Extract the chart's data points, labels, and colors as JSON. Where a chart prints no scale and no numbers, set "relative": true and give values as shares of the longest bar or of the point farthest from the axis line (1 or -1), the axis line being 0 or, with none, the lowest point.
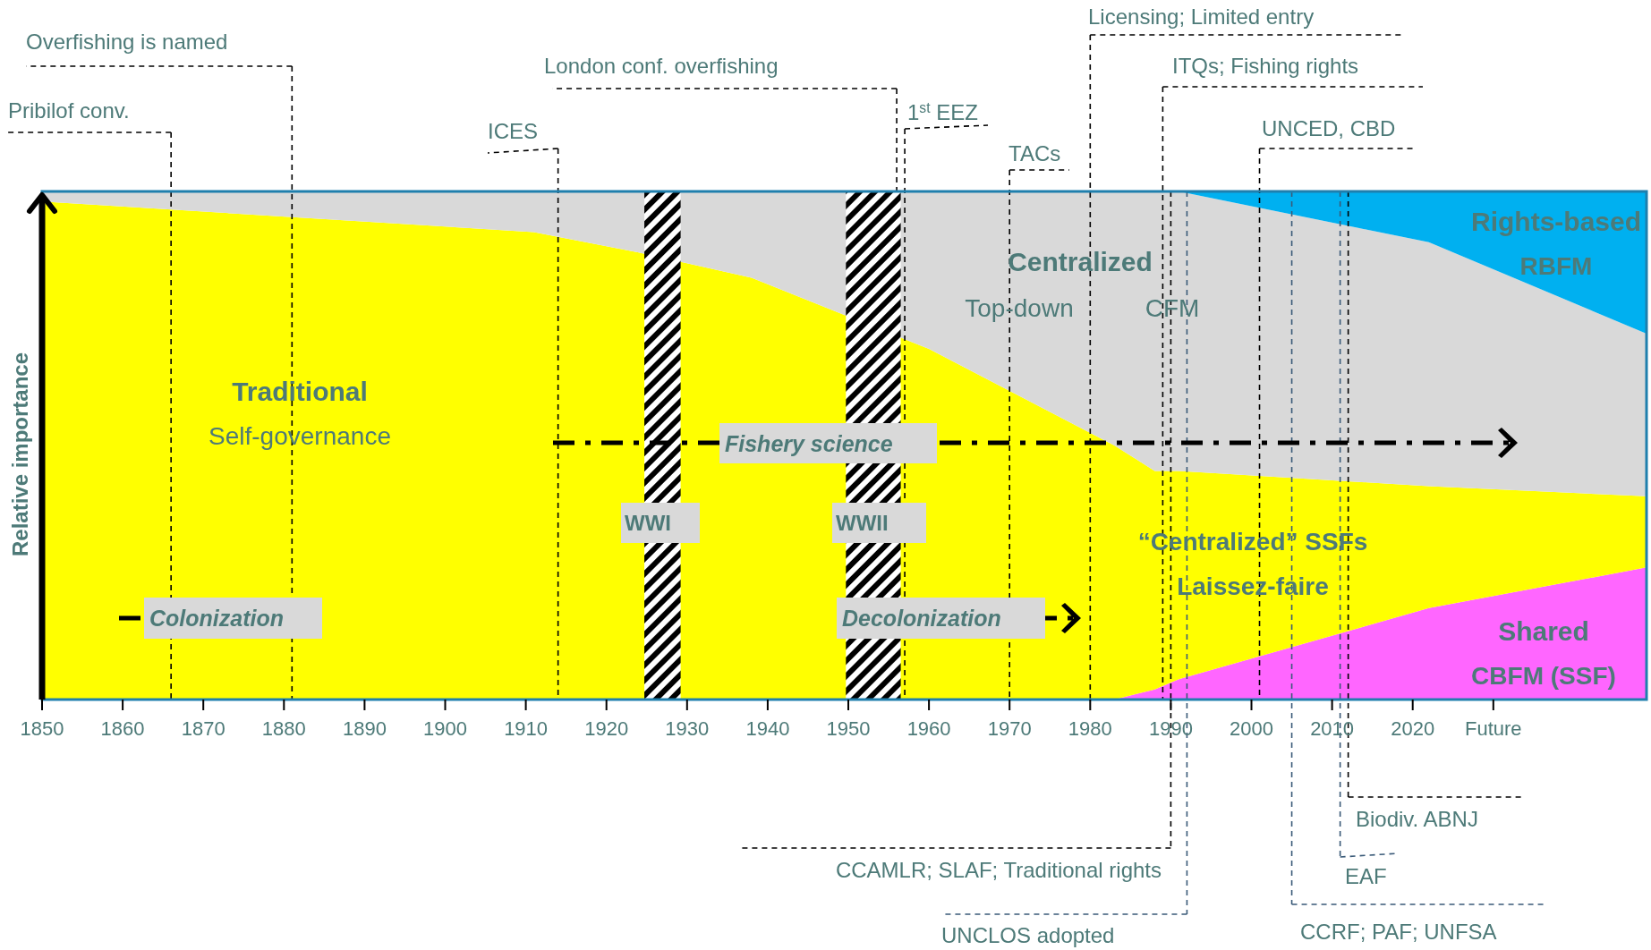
{
  "chart_data": {
    "type": "area",
    "stacked": true,
    "relative": true,
    "ylabel": "Relative importance",
    "x": [
      1850,
      1911,
      1924,
      1938,
      1949,
      1960,
      1983,
      1988,
      1991,
      2022,
      2049
    ],
    "xlim": [
      1850,
      2049
    ],
    "xticks": [
      1850,
      1860,
      1870,
      1880,
      1890,
      1900,
      1910,
      1920,
      1930,
      1940,
      1950,
      1960,
      1970,
      1980,
      1990,
      2000,
      2010,
      2020,
      {
        "value": 2030,
        "label": "Future"
      }
    ],
    "series": [
      {
        "name": "Shared",
        "color": "#ff66ff",
        "values": [
          0,
          0,
          0,
          0,
          0,
          0,
          0,
          0.02,
          0.04,
          0.18,
          0.26
        ]
      },
      {
        "name": "Traditional",
        "color": "#ffff00",
        "values": [
          0.98,
          0.92,
          0.88,
          0.83,
          0.76,
          0.69,
          0.5,
          0.43,
          0.41,
          0.24,
          0.14
        ]
      },
      {
        "name": "Centralized",
        "color": "#d9d9d9",
        "values": [
          0.02,
          0.08,
          0.12,
          0.17,
          0.24,
          0.31,
          0.5,
          0.55,
          0.55,
          0.48,
          0.32
        ]
      },
      {
        "name": "Rights-based",
        "color": "#00b0f0",
        "values": [
          0,
          0,
          0,
          0,
          0,
          0,
          0,
          0,
          0,
          0.1,
          0.28
        ]
      }
    ],
    "bands": [
      {
        "axis": "x",
        "from": 1924.7,
        "to": 1929.2,
        "label": "WWI",
        "color": "#000000"
      },
      {
        "axis": "x",
        "from": 1949.7,
        "to": 1956.5,
        "label": "WWII",
        "color": "#000000"
      }
    ],
    "ref_lines": [
      {
        "axis": "x",
        "value": 1866,
        "label": "Pribilof conv.",
        "color": "#000000",
        "line_style": "dashed"
      },
      {
        "axis": "x",
        "value": 1881,
        "label": "Overfishing is named",
        "color": "#000000",
        "line_style": "dashed"
      },
      {
        "axis": "x",
        "value": 1914,
        "label": "ICES",
        "color": "#000000",
        "line_style": "dashed"
      },
      {
        "axis": "x",
        "value": 1956,
        "label": "London conf. overfishing",
        "color": "#000000",
        "line_style": "dashed"
      },
      {
        "axis": "x",
        "value": 1957,
        "label": "1$^{st}$ EEZ",
        "color": "#000000",
        "line_style": "dashed"
      },
      {
        "axis": "x",
        "value": 1970,
        "label": "TACs",
        "color": "#000000",
        "line_style": "dashed"
      },
      {
        "axis": "x",
        "value": 1980,
        "label": "Licensing; Limited entry",
        "color": "#000000",
        "line_style": "dashed"
      },
      {
        "axis": "x",
        "value": 1989,
        "label": "ITQs; Fishing rights",
        "color": "#000000",
        "line_style": "dashed"
      },
      {
        "axis": "x",
        "value": 2001,
        "label": "UNCED, CBD",
        "color": "#000000",
        "line_style": "dashed"
      },
      {
        "axis": "x",
        "value": 1990,
        "label": "CCAMLR; SLAF; Traditional rights",
        "color": "#000000",
        "line_style": "dashed"
      },
      {
        "axis": "x",
        "value": 1992,
        "label": "UNCLOS adopted",
        "color": "#3a5a78",
        "line_style": "dashed"
      },
      {
        "axis": "x",
        "value": 2005,
        "label": "CCRF; PAF; UNFSA",
        "color": "#3a5a78",
        "line_style": "dashed"
      },
      {
        "axis": "x",
        "value": 2011,
        "label": "EAF",
        "color": "#3a5a78",
        "line_style": "dashed"
      },
      {
        "axis": "x",
        "value": 2012,
        "label": "Biodiv. ABNJ",
        "color": "#000000",
        "line_style": "dashed"
      }
    ],
    "annotations": [
      "Self-governance",
      "Top-down",
      "CFM",
      "RBFM",
      "“Centralized” SSFs",
      "Laissez-faire",
      "CBFM (SSF)",
      "Fishery science",
      "Colonization",
      "Decolonization"
    ]
  }
}
